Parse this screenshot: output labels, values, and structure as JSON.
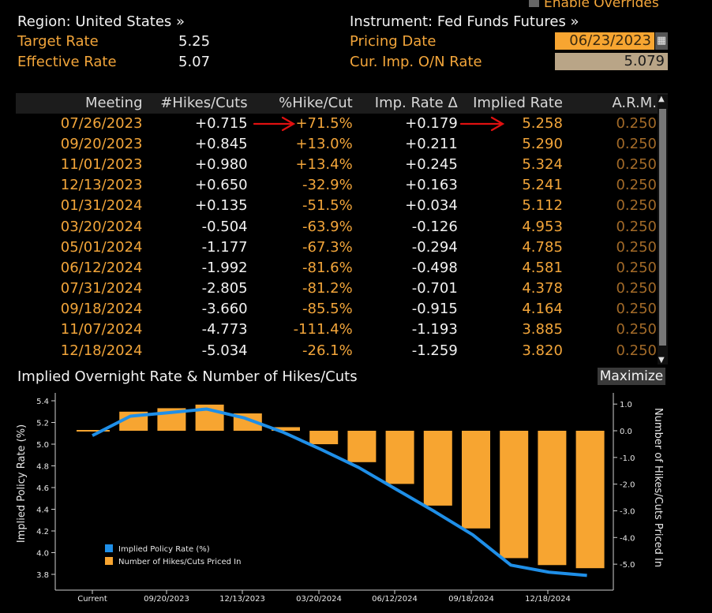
{
  "header": {
    "enable_overrides": "Enable Overrides",
    "region": "Region: United States »",
    "target_rate_label": "Target Rate",
    "target_rate_value": "5.25",
    "effective_rate_label": "Effective Rate",
    "effective_rate_value": "5.07",
    "instrument": "Instrument: Fed Funds Futures »",
    "pricing_date_label": "Pricing Date",
    "pricing_date_value": "06/23/2023",
    "cur_imp_label": "Cur. Imp. O/N Rate",
    "cur_imp_value": "5.079"
  },
  "table": {
    "columns": [
      "Meeting",
      "#Hikes/Cuts",
      "%Hike/Cut",
      "Imp. Rate Δ",
      "Implied Rate",
      "A.R.M."
    ],
    "rows": [
      {
        "meeting": "07/26/2023",
        "hikes": "+0.715",
        "pct": "+71.5%",
        "delta": "+0.179",
        "rate": "5.258",
        "arm": "0.250"
      },
      {
        "meeting": "09/20/2023",
        "hikes": "+0.845",
        "pct": "+13.0%",
        "delta": "+0.211",
        "rate": "5.290",
        "arm": "0.250"
      },
      {
        "meeting": "11/01/2023",
        "hikes": "+0.980",
        "pct": "+13.4%",
        "delta": "+0.245",
        "rate": "5.324",
        "arm": "0.250"
      },
      {
        "meeting": "12/13/2023",
        "hikes": "+0.650",
        "pct": "-32.9%",
        "delta": "+0.163",
        "rate": "5.241",
        "arm": "0.250"
      },
      {
        "meeting": "01/31/2024",
        "hikes": "+0.135",
        "pct": "-51.5%",
        "delta": "+0.034",
        "rate": "5.112",
        "arm": "0.250"
      },
      {
        "meeting": "03/20/2024",
        "hikes": "-0.504",
        "pct": "-63.9%",
        "delta": "-0.126",
        "rate": "4.953",
        "arm": "0.250"
      },
      {
        "meeting": "05/01/2024",
        "hikes": "-1.177",
        "pct": "-67.3%",
        "delta": "-0.294",
        "rate": "4.785",
        "arm": "0.250"
      },
      {
        "meeting": "06/12/2024",
        "hikes": "-1.992",
        "pct": "-81.6%",
        "delta": "-0.498",
        "rate": "4.581",
        "arm": "0.250"
      },
      {
        "meeting": "07/31/2024",
        "hikes": "-2.805",
        "pct": "-81.2%",
        "delta": "-0.701",
        "rate": "4.378",
        "arm": "0.250"
      },
      {
        "meeting": "09/18/2024",
        "hikes": "-3.660",
        "pct": "-85.5%",
        "delta": "-0.915",
        "rate": "4.164",
        "arm": "0.250"
      },
      {
        "meeting": "11/07/2024",
        "hikes": "-4.773",
        "pct": "-111.4%",
        "delta": "-1.193",
        "rate": "3.885",
        "arm": "0.250"
      },
      {
        "meeting": "12/18/2024",
        "hikes": "-5.034",
        "pct": "-26.1%",
        "delta": "-1.259",
        "rate": "3.820",
        "arm": "0.250"
      }
    ]
  },
  "chart_header": {
    "title": "Implied Overnight Rate & Number of Hikes/Cuts",
    "maximize": "Maximize"
  },
  "colors": {
    "bar": "#f7a531",
    "line": "#1f8fe8",
    "orange_text": "#f2a53a",
    "annotation": "#e01010"
  },
  "chart_data": {
    "type": "bar",
    "title": "Implied Overnight Rate & Number of Hikes/Cuts",
    "ylabel": "Implied Policy Rate (%)",
    "y2label": "Number of Hikes/Cuts Priced In",
    "ylim": [
      3.7,
      5.45
    ],
    "y2lim": [
      -5.5,
      1.1
    ],
    "yticks": [
      "5.4",
      "5.2",
      "5.0",
      "4.8",
      "4.6",
      "4.4",
      "4.2",
      "4.0",
      "3.8"
    ],
    "y2ticks": [
      "1.0",
      "0.0",
      "-1.0",
      "-2.0",
      "-3.0",
      "-4.0",
      "-5.0"
    ],
    "xticks": [
      "Current",
      "09/20/2023",
      "12/13/2023",
      "03/20/2024",
      "06/12/2024",
      "09/18/2024",
      "12/18/2024"
    ],
    "series": [
      {
        "name": "Implied Policy Rate (%)",
        "type": "line",
        "values": [
          5.079,
          5.258,
          5.29,
          5.324,
          5.241,
          5.112,
          4.953,
          4.785,
          4.581,
          4.378,
          4.164,
          3.885,
          3.82,
          3.79
        ]
      },
      {
        "name": "Number of Hikes/Cuts Priced In",
        "type": "bar",
        "values": [
          0.715,
          0.845,
          0.98,
          0.65,
          0.135,
          -0.504,
          -1.177,
          -1.992,
          -2.805,
          -3.66,
          -4.773,
          -5.034,
          -5.15
        ]
      }
    ],
    "legend_position": "bottom-left",
    "grid": false
  }
}
